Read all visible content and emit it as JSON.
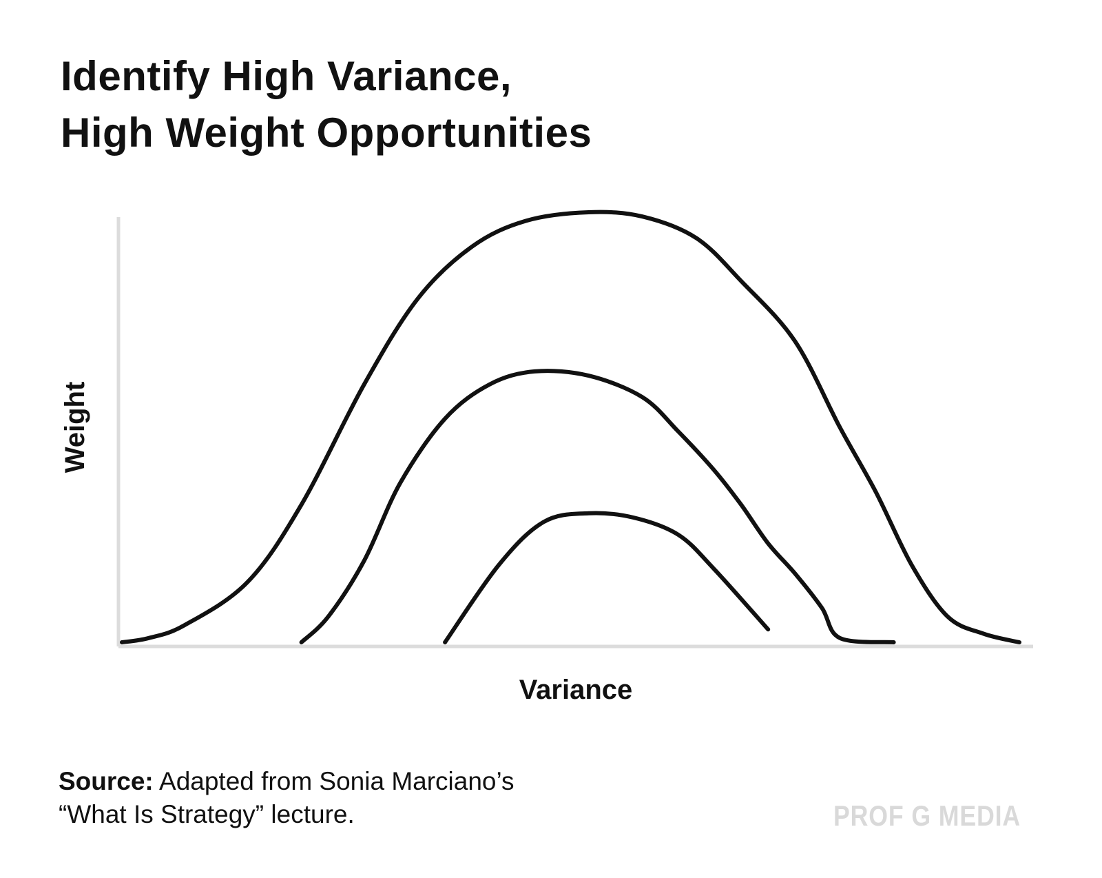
{
  "chart_data": {
    "type": "line",
    "title_lines": [
      "Identify High Variance,",
      "High Weight Opportunities"
    ],
    "xlabel": "Variance",
    "ylabel": "Weight",
    "ticks": "none",
    "grid": false,
    "legend": "none",
    "xlim": [
      0,
      100
    ],
    "ylim": [
      0,
      100
    ],
    "series": [
      {
        "x": [
          0,
          3,
          7,
          14,
          20,
          27,
          33,
          39,
          45,
          52,
          58,
          64,
          69,
          75,
          80,
          84,
          88,
          92,
          96,
          100
        ],
        "y": [
          0,
          1,
          4,
          14,
          32,
          60,
          80,
          92,
          98,
          100,
          99,
          94,
          84,
          70,
          50,
          35,
          18,
          6,
          2,
          0
        ]
      },
      {
        "x": [
          20,
          23,
          27,
          31,
          36,
          41,
          46,
          52,
          58,
          62,
          66,
          69,
          72,
          75,
          78,
          80,
          86
        ],
        "y": [
          0,
          6,
          19,
          37,
          52,
          60,
          63,
          62,
          57,
          49,
          40,
          32,
          23,
          16,
          8,
          1,
          0
        ]
      },
      {
        "x": [
          36,
          42,
          47,
          52,
          57,
          62,
          66,
          72
        ],
        "y": [
          0,
          18,
          28,
          30,
          29,
          25,
          17,
          3
        ]
      }
    ],
    "colors": {
      "curve": "#111111",
      "axis": "#dcdcdc"
    }
  },
  "source": {
    "label": "Source:",
    "line1": "Adapted from Sonia Marciano’s",
    "line2": "“What Is Strategy” lecture."
  },
  "brand": "PROF G MEDIA"
}
